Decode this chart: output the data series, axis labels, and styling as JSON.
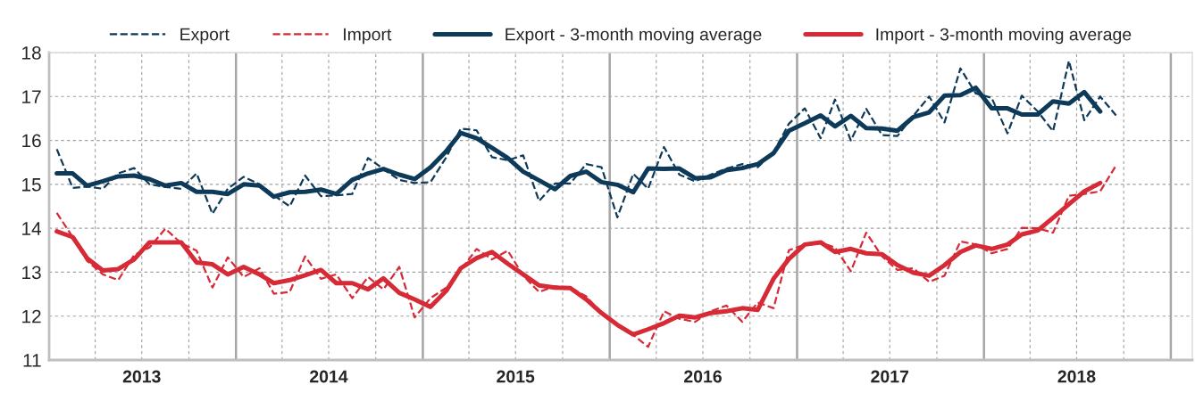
{
  "chart_data": {
    "type": "line",
    "x": [
      "2013-01-16",
      "2013-02-16",
      "2013-03-16",
      "2013-04-16",
      "2013-05-16",
      "2013-06-16",
      "2013-07-16",
      "2013-08-16",
      "2013-09-16",
      "2013-10-16",
      "2013-11-16",
      "2013-12-16",
      "2014-01-16",
      "2014-02-16",
      "2014-03-16",
      "2014-04-16",
      "2014-05-16",
      "2014-06-16",
      "2014-07-16",
      "2014-08-16",
      "2014-09-16",
      "2014-10-16",
      "2014-11-16",
      "2014-12-16",
      "2015-01-16",
      "2015-02-16",
      "2015-03-16",
      "2015-04-16",
      "2015-05-16",
      "2015-06-16",
      "2015-07-16",
      "2015-08-16",
      "2015-09-16",
      "2015-10-16",
      "2015-11-16",
      "2015-12-16",
      "2016-01-16",
      "2016-02-16",
      "2016-03-16",
      "2016-04-16",
      "2016-05-16",
      "2016-06-16",
      "2016-07-16",
      "2016-08-16",
      "2016-09-16",
      "2016-10-16",
      "2016-11-16",
      "2016-12-16",
      "2017-01-16",
      "2017-02-16",
      "2017-03-16",
      "2017-04-16",
      "2017-05-16",
      "2017-06-16",
      "2017-07-16",
      "2017-08-16",
      "2017-09-16",
      "2017-10-16",
      "2017-11-16",
      "2017-12-16",
      "2018-01-16",
      "2018-02-16",
      "2018-03-16",
      "2018-04-16",
      "2018-05-16",
      "2018-06-16",
      "2018-07-16",
      "2018-08-16",
      "2018-09-16"
    ],
    "series": [
      {
        "name": "Export",
        "color": "#0e3a5a",
        "line_style": "dashed",
        "values": [
          15.8,
          14.92,
          14.95,
          14.9,
          15.25,
          15.37,
          15.0,
          14.94,
          14.9,
          15.25,
          14.33,
          14.9,
          15.17,
          15.0,
          14.75,
          14.5,
          15.2,
          14.73,
          14.75,
          14.78,
          15.6,
          15.35,
          15.1,
          15.03,
          15.05,
          15.62,
          16.27,
          16.23,
          15.62,
          15.55,
          15.66,
          14.62,
          15.02,
          15.02,
          15.46,
          15.39,
          14.25,
          15.24,
          14.9,
          15.85,
          15.22,
          15.07,
          15.22,
          15.36,
          15.46,
          15.39,
          15.73,
          16.38,
          16.73,
          16.05,
          16.93,
          16.0,
          16.72,
          16.12,
          16.1,
          16.56,
          17.0,
          16.41,
          17.64,
          17.07,
          16.97,
          16.16,
          17.02,
          16.66,
          16.21,
          17.81,
          16.46,
          17.0,
          16.57
        ]
      },
      {
        "name": "Import",
        "color": "#d62a36",
        "line_style": "dashed",
        "values": [
          14.35,
          13.8,
          13.26,
          12.95,
          12.82,
          13.39,
          13.56,
          13.99,
          13.66,
          13.49,
          12.65,
          13.34,
          12.89,
          13.09,
          12.51,
          12.55,
          13.36,
          12.85,
          12.95,
          12.41,
          12.89,
          12.61,
          13.12,
          11.97,
          12.41,
          12.65,
          13.05,
          13.53,
          13.29,
          13.49,
          12.92,
          12.55,
          12.68,
          12.65,
          12.45,
          12.07,
          11.8,
          11.57,
          11.3,
          12.11,
          11.94,
          11.87,
          12.11,
          12.24,
          11.87,
          12.31,
          12.18,
          13.5,
          13.63,
          13.68,
          13.56,
          13.02,
          13.9,
          13.36,
          13.05,
          13.09,
          12.78,
          12.92,
          13.7,
          13.63,
          13.43,
          13.53,
          14.01,
          14.0,
          13.9,
          14.74,
          14.78,
          14.84,
          15.43
        ]
      },
      {
        "name": "Export - 3-month moving average",
        "color": "#0e3a5a",
        "line_style": "solid",
        "values": [
          15.25,
          15.25,
          14.97,
          15.07,
          15.18,
          15.2,
          15.12,
          14.97,
          15.03,
          14.83,
          14.83,
          14.78,
          15.0,
          14.97,
          14.72,
          14.82,
          14.83,
          14.88,
          14.78,
          15.1,
          15.25,
          15.35,
          15.22,
          15.12,
          15.39,
          15.76,
          16.17,
          16.05,
          15.83,
          15.6,
          15.29,
          15.09,
          14.89,
          15.19,
          15.29,
          15.05,
          14.99,
          14.82,
          15.36,
          15.35,
          15.36,
          15.14,
          15.16,
          15.32,
          15.37,
          15.46,
          15.71,
          16.22,
          16.39,
          16.57,
          16.32,
          16.56,
          16.28,
          16.27,
          16.22,
          16.53,
          16.64,
          17.02,
          17.03,
          17.2,
          16.73,
          16.73,
          16.59,
          16.59,
          16.89,
          16.84,
          17.1,
          16.66,
          null
        ]
      },
      {
        "name": "Import - 3-month moving average",
        "color": "#d62a36",
        "line_style": "solid",
        "values": [
          13.93,
          13.8,
          13.32,
          13.04,
          13.07,
          13.29,
          13.68,
          13.68,
          13.68,
          13.22,
          13.18,
          12.95,
          13.12,
          12.95,
          12.75,
          12.82,
          12.93,
          13.05,
          12.75,
          12.75,
          12.61,
          12.86,
          12.53,
          12.38,
          12.21,
          12.58,
          13.09,
          13.32,
          13.46,
          13.19,
          12.95,
          12.7,
          12.65,
          12.64,
          12.38,
          12.07,
          11.8,
          11.58,
          11.7,
          11.84,
          12.01,
          11.97,
          12.07,
          12.11,
          12.18,
          12.14,
          12.85,
          13.3,
          13.63,
          13.68,
          13.46,
          13.53,
          13.43,
          13.41,
          13.16,
          12.99,
          12.92,
          13.16,
          13.46,
          13.61,
          13.53,
          13.63,
          13.86,
          13.95,
          14.24,
          14.55,
          14.84,
          15.03,
          null
        ]
      }
    ],
    "xlim": [
      "2013-01-01",
      "2019-02-12"
    ],
    "xticks": [
      {
        "value": "2013-04-01",
        "label": null
      },
      {
        "value": "2013-07-01",
        "label": "2013"
      },
      {
        "value": "2013-10-01",
        "label": null
      },
      {
        "value": "2014-04-01",
        "label": null
      },
      {
        "value": "2014-07-01",
        "label": "2014"
      },
      {
        "value": "2014-10-01",
        "label": null
      },
      {
        "value": "2015-04-01",
        "label": null
      },
      {
        "value": "2015-07-01",
        "label": "2015"
      },
      {
        "value": "2015-10-01",
        "label": null
      },
      {
        "value": "2016-04-01",
        "label": null
      },
      {
        "value": "2016-07-01",
        "label": "2016"
      },
      {
        "value": "2016-10-01",
        "label": null
      },
      {
        "value": "2017-04-01",
        "label": null
      },
      {
        "value": "2017-07-01",
        "label": "2017"
      },
      {
        "value": "2017-10-01",
        "label": null
      },
      {
        "value": "2018-04-01",
        "label": null
      },
      {
        "value": "2018-07-01",
        "label": "2018"
      },
      {
        "value": "2018-10-01",
        "label": null
      }
    ],
    "ylim": [
      11,
      18
    ],
    "yticks": [
      11,
      12,
      13,
      14,
      15,
      16,
      17,
      18
    ],
    "ref_lines": [
      {
        "axis": "x",
        "value": "2014-01-01",
        "color": "#a6a6a6",
        "line_style": "solid"
      },
      {
        "axis": "x",
        "value": "2015-01-01",
        "color": "#a6a6a6",
        "line_style": "solid"
      },
      {
        "axis": "x",
        "value": "2016-01-01",
        "color": "#a6a6a6",
        "line_style": "solid"
      },
      {
        "axis": "x",
        "value": "2017-01-01",
        "color": "#a6a6a6",
        "line_style": "solid"
      },
      {
        "axis": "x",
        "value": "2018-01-01",
        "color": "#a6a6a6",
        "line_style": "solid"
      },
      {
        "axis": "x",
        "value": "2019-01-01",
        "color": "#a6a6a6",
        "line_style": "solid"
      }
    ],
    "grid": true,
    "legend": "top",
    "marker": "none"
  }
}
